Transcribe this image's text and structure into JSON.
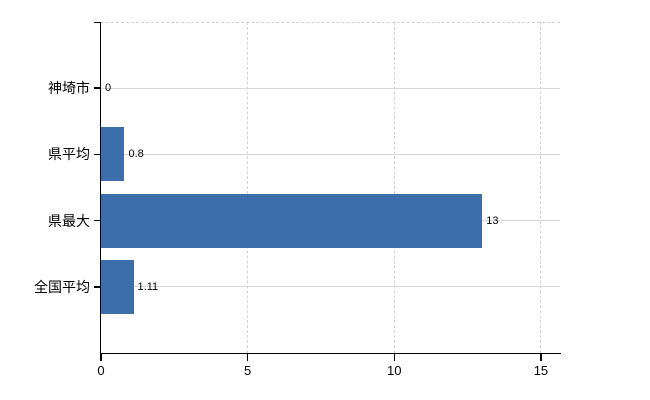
{
  "chart_data": {
    "type": "bar",
    "orientation": "horizontal",
    "title": "",
    "xlabel": "",
    "ylabel": "",
    "categories": [
      "神埼市",
      "県平均",
      "県最大",
      "全国平均"
    ],
    "values": [
      0,
      0.8,
      13,
      1.11
    ],
    "value_labels": [
      "0",
      "0.8",
      "13",
      "1.11"
    ],
    "x_ticks": [
      0,
      5,
      10,
      15
    ],
    "x_tick_labels": [
      "0",
      "5",
      "10",
      "15"
    ],
    "xlim": [
      0,
      15.65
    ],
    "grid": true,
    "legend": false,
    "colors": {
      "bar": "#3c6eac",
      "h_gridline": "#d5dad5",
      "v_gridline": "#d8d1d9",
      "axis": "#000000",
      "text": "#000000"
    }
  }
}
